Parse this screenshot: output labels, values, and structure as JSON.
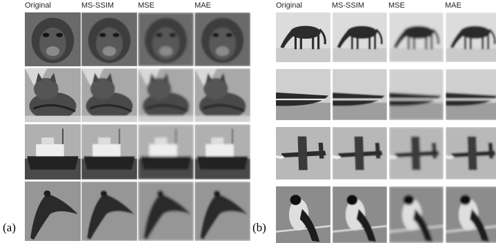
{
  "panels": [
    {
      "label": "(a)",
      "columns": [
        "Original",
        "MS-SSIM",
        "MSE",
        "MAE"
      ],
      "rows": [
        "baboon",
        "cat",
        "ship",
        "bird"
      ]
    },
    {
      "label": "(b)",
      "columns": [
        "Original",
        "MS-SSIM",
        "MSE",
        "MAE"
      ],
      "rows": [
        "horse",
        "ship",
        "airplane",
        "bird"
      ]
    }
  ]
}
